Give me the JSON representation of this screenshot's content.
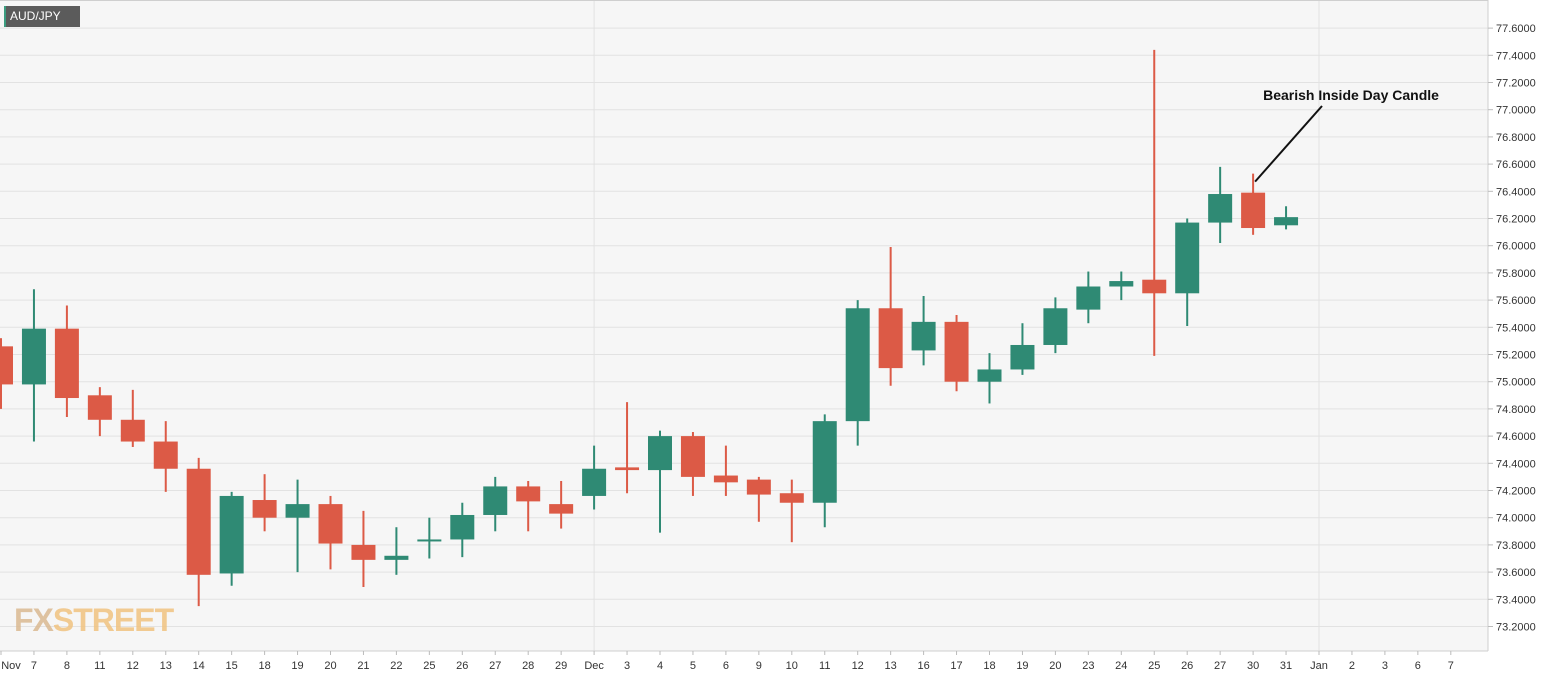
{
  "instrument": {
    "symbol": "AUD/JPY"
  },
  "brand": {
    "part1": "FX",
    "part2": "STREET"
  },
  "colors": {
    "up": "#2f8a74",
    "down": "#dc5a46",
    "plot_bg": "#f6f6f6",
    "grid": "#e2e2e2",
    "axis_text": "#333333",
    "brand": "#f0c27f",
    "annotation_line": "#111111"
  },
  "chart_data": {
    "type": "candlestick",
    "title": "",
    "xlabel": "",
    "ylabel": "",
    "ylim": [
      73.0,
      77.75
    ],
    "grid": true,
    "y_ticks": [
      "73.2000",
      "73.4000",
      "73.6000",
      "73.8000",
      "74.0000",
      "74.2000",
      "74.4000",
      "74.6000",
      "74.8000",
      "75.0000",
      "75.2000",
      "75.4000",
      "75.6000",
      "75.8000",
      "76.0000",
      "76.2000",
      "76.4000",
      "76.6000",
      "76.8000",
      "77.0000",
      "77.2000",
      "77.4000",
      "77.6000"
    ],
    "x_ticks": [
      "Nov",
      "7",
      "8",
      "11",
      "12",
      "13",
      "14",
      "15",
      "18",
      "19",
      "20",
      "21",
      "22",
      "25",
      "26",
      "27",
      "28",
      "29",
      "Dec",
      "3",
      "4",
      "5",
      "6",
      "9",
      "10",
      "11",
      "12",
      "13",
      "16",
      "17",
      "18",
      "19",
      "20",
      "23",
      "24",
      "25",
      "26",
      "27",
      "30",
      "31",
      "Jan",
      "2",
      "3",
      "6",
      "7"
    ],
    "candles": [
      {
        "o": 75.26,
        "h": 75.32,
        "l": 74.8,
        "c": 74.98
      },
      {
        "o": 74.98,
        "h": 75.68,
        "l": 74.56,
        "c": 75.39
      },
      {
        "o": 75.39,
        "h": 75.56,
        "l": 74.74,
        "c": 74.88
      },
      {
        "o": 74.9,
        "h": 74.96,
        "l": 74.6,
        "c": 74.72
      },
      {
        "o": 74.72,
        "h": 74.94,
        "l": 74.52,
        "c": 74.56
      },
      {
        "o": 74.56,
        "h": 74.71,
        "l": 74.19,
        "c": 74.36
      },
      {
        "o": 74.36,
        "h": 74.44,
        "l": 73.35,
        "c": 73.58
      },
      {
        "o": 73.59,
        "h": 74.19,
        "l": 73.5,
        "c": 74.16
      },
      {
        "o": 74.13,
        "h": 74.32,
        "l": 73.9,
        "c": 74.0
      },
      {
        "o": 74.0,
        "h": 74.28,
        "l": 73.6,
        "c": 74.1
      },
      {
        "o": 74.1,
        "h": 74.16,
        "l": 73.62,
        "c": 73.81
      },
      {
        "o": 73.8,
        "h": 74.05,
        "l": 73.49,
        "c": 73.69
      },
      {
        "o": 73.69,
        "h": 73.93,
        "l": 73.58,
        "c": 73.72
      },
      {
        "o": 73.83,
        "h": 74.0,
        "l": 73.7,
        "c": 73.84
      },
      {
        "o": 73.84,
        "h": 74.11,
        "l": 73.71,
        "c": 74.02
      },
      {
        "o": 74.02,
        "h": 74.3,
        "l": 73.9,
        "c": 74.23
      },
      {
        "o": 74.23,
        "h": 74.27,
        "l": 73.9,
        "c": 74.12
      },
      {
        "o": 74.1,
        "h": 74.27,
        "l": 73.92,
        "c": 74.03
      },
      {
        "o": 74.16,
        "h": 74.53,
        "l": 74.06,
        "c": 74.36
      },
      {
        "o": 74.37,
        "h": 74.85,
        "l": 74.18,
        "c": 74.35
      },
      {
        "o": 74.35,
        "h": 74.64,
        "l": 73.89,
        "c": 74.6
      },
      {
        "o": 74.6,
        "h": 74.63,
        "l": 74.16,
        "c": 74.3
      },
      {
        "o": 74.31,
        "h": 74.53,
        "l": 74.16,
        "c": 74.26
      },
      {
        "o": 74.28,
        "h": 74.3,
        "l": 73.97,
        "c": 74.17
      },
      {
        "o": 74.18,
        "h": 74.28,
        "l": 73.82,
        "c": 74.11
      },
      {
        "o": 74.11,
        "h": 74.76,
        "l": 73.93,
        "c": 74.71
      },
      {
        "o": 74.71,
        "h": 75.6,
        "l": 74.53,
        "c": 75.54
      },
      {
        "o": 75.54,
        "h": 75.99,
        "l": 74.97,
        "c": 75.1
      },
      {
        "o": 75.23,
        "h": 75.63,
        "l": 75.12,
        "c": 75.44
      },
      {
        "o": 75.44,
        "h": 75.49,
        "l": 74.93,
        "c": 75.0
      },
      {
        "o": 75.0,
        "h": 75.21,
        "l": 74.84,
        "c": 75.09
      },
      {
        "o": 75.09,
        "h": 75.43,
        "l": 75.05,
        "c": 75.27
      },
      {
        "o": 75.27,
        "h": 75.62,
        "l": 75.21,
        "c": 75.54
      },
      {
        "o": 75.53,
        "h": 75.81,
        "l": 75.43,
        "c": 75.7
      },
      {
        "o": 75.7,
        "h": 75.81,
        "l": 75.6,
        "c": 75.74
      },
      {
        "o": 75.75,
        "h": 77.44,
        "l": 75.19,
        "c": 75.65
      },
      {
        "o": 75.65,
        "h": 76.2,
        "l": 75.41,
        "c": 76.17
      },
      {
        "o": 76.17,
        "h": 76.58,
        "l": 76.02,
        "c": 76.38
      },
      {
        "o": 76.39,
        "h": 76.53,
        "l": 76.08,
        "c": 76.13
      },
      {
        "o": 76.15,
        "h": 76.29,
        "l": 76.12,
        "c": 76.21
      }
    ],
    "annotations": [
      {
        "text": "Bearish Inside Day Candle",
        "points_to_candle_index": 38
      }
    ]
  }
}
